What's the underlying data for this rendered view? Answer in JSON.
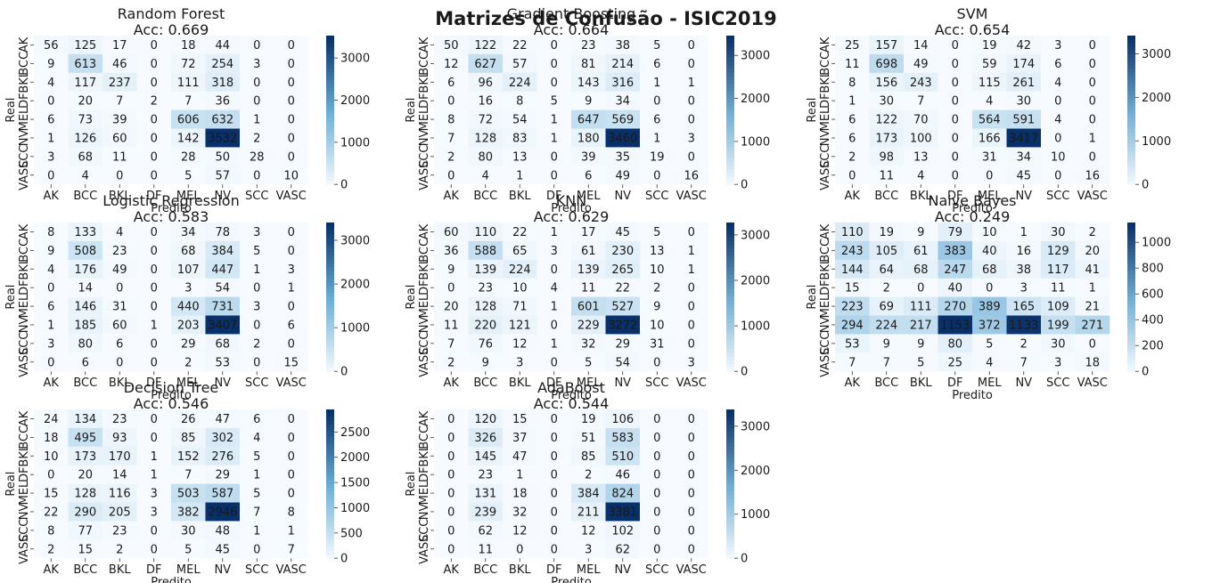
{
  "suptitle": "Matrizes de Confusão - ISIC2019",
  "colors": {
    "low": "#f7fbff",
    "high": "#08306b",
    "text_dark": "#262626",
    "text_light": "#ffffff"
  },
  "chart_data": [
    {
      "type": "heatmap",
      "title": "Random Forest",
      "subtitle": "Acc: 0.669",
      "xlabel": "Predito",
      "ylabel": "Real",
      "x_categories": [
        "AK",
        "BCC",
        "BKL",
        "DF",
        "MEL",
        "NV",
        "SCC",
        "VASC"
      ],
      "y_categories": [
        "AK",
        "BCC",
        "BKL",
        "DF",
        "MEL",
        "NV",
        "SCC",
        "VASC"
      ],
      "matrix": [
        [
          56,
          125,
          17,
          0,
          18,
          44,
          0,
          0
        ],
        [
          9,
          613,
          46,
          0,
          72,
          254,
          3,
          0
        ],
        [
          4,
          117,
          237,
          0,
          111,
          318,
          0,
          0
        ],
        [
          0,
          20,
          7,
          2,
          7,
          36,
          0,
          0
        ],
        [
          6,
          73,
          39,
          0,
          606,
          632,
          1,
          0
        ],
        [
          1,
          126,
          60,
          0,
          142,
          3532,
          2,
          0
        ],
        [
          3,
          68,
          11,
          0,
          28,
          50,
          28,
          0
        ],
        [
          0,
          4,
          0,
          0,
          5,
          57,
          0,
          10
        ]
      ],
      "colorbar_ticks": [
        0,
        1000,
        2000,
        3000
      ]
    },
    {
      "type": "heatmap",
      "title": "Gradient Boosting",
      "subtitle": "Acc: 0.664",
      "xlabel": "Predito",
      "ylabel": "Real",
      "x_categories": [
        "AK",
        "BCC",
        "BKL",
        "DF",
        "MEL",
        "NV",
        "SCC",
        "VASC"
      ],
      "y_categories": [
        "AK",
        "BCC",
        "BKL",
        "DF",
        "MEL",
        "NV",
        "SCC",
        "VASC"
      ],
      "matrix": [
        [
          50,
          122,
          22,
          0,
          23,
          38,
          5,
          0
        ],
        [
          12,
          627,
          57,
          0,
          81,
          214,
          6,
          0
        ],
        [
          6,
          96,
          224,
          0,
          143,
          316,
          1,
          1
        ],
        [
          0,
          16,
          8,
          5,
          9,
          34,
          0,
          0
        ],
        [
          8,
          72,
          54,
          1,
          647,
          569,
          6,
          0
        ],
        [
          7,
          128,
          83,
          1,
          180,
          3460,
          1,
          3
        ],
        [
          2,
          80,
          13,
          0,
          39,
          35,
          19,
          0
        ],
        [
          0,
          4,
          1,
          0,
          6,
          49,
          0,
          16
        ]
      ],
      "colorbar_ticks": [
        0,
        1000,
        2000,
        3000
      ]
    },
    {
      "type": "heatmap",
      "title": "SVM",
      "subtitle": "Acc: 0.654",
      "xlabel": "Predito",
      "ylabel": "Real",
      "x_categories": [
        "AK",
        "BCC",
        "BKL",
        "DF",
        "MEL",
        "NV",
        "SCC",
        "VASC"
      ],
      "y_categories": [
        "AK",
        "BCC",
        "BKL",
        "DF",
        "MEL",
        "NV",
        "SCC",
        "VASC"
      ],
      "matrix": [
        [
          25,
          157,
          14,
          0,
          19,
          42,
          3,
          0
        ],
        [
          11,
          698,
          49,
          0,
          59,
          174,
          6,
          0
        ],
        [
          8,
          156,
          243,
          0,
          115,
          261,
          4,
          0
        ],
        [
          1,
          30,
          7,
          0,
          4,
          30,
          0,
          0
        ],
        [
          6,
          122,
          70,
          0,
          564,
          591,
          4,
          0
        ],
        [
          6,
          173,
          100,
          0,
          166,
          3417,
          0,
          1
        ],
        [
          2,
          98,
          13,
          0,
          31,
          34,
          10,
          0
        ],
        [
          0,
          11,
          4,
          0,
          0,
          45,
          0,
          16
        ]
      ],
      "colorbar_ticks": [
        0,
        1000,
        2000,
        3000
      ]
    },
    {
      "type": "heatmap",
      "title": "Logistic Regression",
      "subtitle": "Acc: 0.583",
      "xlabel": "Predito",
      "ylabel": "Real",
      "x_categories": [
        "AK",
        "BCC",
        "BKL",
        "DF",
        "MEL",
        "NV",
        "SCC",
        "VASC"
      ],
      "y_categories": [
        "AK",
        "BCC",
        "BKL",
        "DF",
        "MEL",
        "NV",
        "SCC",
        "VASC"
      ],
      "matrix": [
        [
          8,
          133,
          4,
          0,
          34,
          78,
          3,
          0
        ],
        [
          9,
          508,
          23,
          0,
          68,
          384,
          5,
          0
        ],
        [
          4,
          176,
          49,
          0,
          107,
          447,
          1,
          3
        ],
        [
          0,
          14,
          0,
          0,
          3,
          54,
          0,
          1
        ],
        [
          6,
          146,
          31,
          0,
          440,
          731,
          3,
          0
        ],
        [
          1,
          185,
          60,
          1,
          203,
          3407,
          0,
          6
        ],
        [
          3,
          80,
          6,
          0,
          29,
          68,
          2,
          0
        ],
        [
          0,
          6,
          0,
          0,
          2,
          53,
          0,
          15
        ]
      ],
      "colorbar_ticks": [
        0,
        1000,
        2000,
        3000
      ]
    },
    {
      "type": "heatmap",
      "title": "KNN",
      "subtitle": "Acc: 0.629",
      "xlabel": "Predito",
      "ylabel": "Real",
      "x_categories": [
        "AK",
        "BCC",
        "BKL",
        "DF",
        "MEL",
        "NV",
        "SCC",
        "VASC"
      ],
      "y_categories": [
        "AK",
        "BCC",
        "BKL",
        "DF",
        "MEL",
        "NV",
        "SCC",
        "VASC"
      ],
      "matrix": [
        [
          60,
          110,
          22,
          1,
          17,
          45,
          5,
          0
        ],
        [
          36,
          588,
          65,
          3,
          61,
          230,
          13,
          1
        ],
        [
          9,
          139,
          224,
          0,
          139,
          265,
          10,
          1
        ],
        [
          0,
          23,
          10,
          4,
          11,
          22,
          2,
          0
        ],
        [
          20,
          128,
          71,
          1,
          601,
          527,
          9,
          0
        ],
        [
          11,
          220,
          121,
          0,
          229,
          3272,
          10,
          0
        ],
        [
          7,
          76,
          12,
          1,
          32,
          29,
          31,
          0
        ],
        [
          2,
          9,
          3,
          0,
          5,
          54,
          0,
          3
        ]
      ],
      "colorbar_ticks": [
        0,
        1000,
        2000,
        3000
      ]
    },
    {
      "type": "heatmap",
      "title": "Naive Bayes",
      "subtitle": "Acc: 0.249",
      "xlabel": "Predito",
      "ylabel": "Real",
      "x_categories": [
        "AK",
        "BCC",
        "BKL",
        "DF",
        "MEL",
        "NV",
        "SCC",
        "VASC"
      ],
      "y_categories": [
        "AK",
        "BCC",
        "BKL",
        "DF",
        "MEL",
        "NV",
        "SCC",
        "VASC"
      ],
      "matrix": [
        [
          110,
          19,
          9,
          79,
          10,
          1,
          30,
          2
        ],
        [
          243,
          105,
          61,
          383,
          40,
          16,
          129,
          20
        ],
        [
          144,
          64,
          68,
          247,
          68,
          38,
          117,
          41
        ],
        [
          15,
          2,
          0,
          40,
          0,
          3,
          11,
          1
        ],
        [
          223,
          69,
          111,
          270,
          389,
          165,
          109,
          21
        ],
        [
          294,
          224,
          217,
          1153,
          372,
          1133,
          199,
          271
        ],
        [
          53,
          9,
          9,
          80,
          5,
          2,
          30,
          0
        ],
        [
          7,
          7,
          5,
          25,
          4,
          7,
          3,
          18
        ]
      ],
      "colorbar_ticks": [
        0,
        200,
        400,
        600,
        800,
        1000
      ]
    },
    {
      "type": "heatmap",
      "title": "Decision Tree",
      "subtitle": "Acc: 0.546",
      "xlabel": "Predito",
      "ylabel": "Real",
      "x_categories": [
        "AK",
        "BCC",
        "BKL",
        "DF",
        "MEL",
        "NV",
        "SCC",
        "VASC"
      ],
      "y_categories": [
        "AK",
        "BCC",
        "BKL",
        "DF",
        "MEL",
        "NV",
        "SCC",
        "VASC"
      ],
      "matrix": [
        [
          24,
          134,
          23,
          0,
          26,
          47,
          6,
          0
        ],
        [
          18,
          495,
          93,
          0,
          85,
          302,
          4,
          0
        ],
        [
          10,
          173,
          170,
          1,
          152,
          276,
          5,
          0
        ],
        [
          0,
          20,
          14,
          1,
          7,
          29,
          1,
          0
        ],
        [
          15,
          128,
          116,
          3,
          503,
          587,
          5,
          0
        ],
        [
          22,
          290,
          205,
          3,
          382,
          2946,
          7,
          8
        ],
        [
          8,
          77,
          23,
          0,
          30,
          48,
          1,
          1
        ],
        [
          2,
          15,
          2,
          0,
          5,
          45,
          0,
          7
        ]
      ],
      "colorbar_ticks": [
        0,
        500,
        1000,
        1500,
        2000,
        2500
      ]
    },
    {
      "type": "heatmap",
      "title": "AdaBoost",
      "subtitle": "Acc: 0.544",
      "xlabel": "Predito",
      "ylabel": "Real",
      "x_categories": [
        "AK",
        "BCC",
        "BKL",
        "DF",
        "MEL",
        "NV",
        "SCC",
        "VASC"
      ],
      "y_categories": [
        "AK",
        "BCC",
        "BKL",
        "DF",
        "MEL",
        "NV",
        "SCC",
        "VASC"
      ],
      "matrix": [
        [
          0,
          120,
          15,
          0,
          19,
          106,
          0,
          0
        ],
        [
          0,
          326,
          37,
          0,
          51,
          583,
          0,
          0
        ],
        [
          0,
          145,
          47,
          0,
          85,
          510,
          0,
          0
        ],
        [
          0,
          23,
          1,
          0,
          2,
          46,
          0,
          0
        ],
        [
          0,
          131,
          18,
          0,
          384,
          824,
          0,
          0
        ],
        [
          0,
          239,
          32,
          0,
          211,
          3381,
          0,
          0
        ],
        [
          0,
          62,
          12,
          0,
          12,
          102,
          0,
          0
        ],
        [
          0,
          11,
          0,
          0,
          3,
          62,
          0,
          0
        ]
      ],
      "colorbar_ticks": [
        0,
        1000,
        2000,
        3000
      ]
    }
  ]
}
